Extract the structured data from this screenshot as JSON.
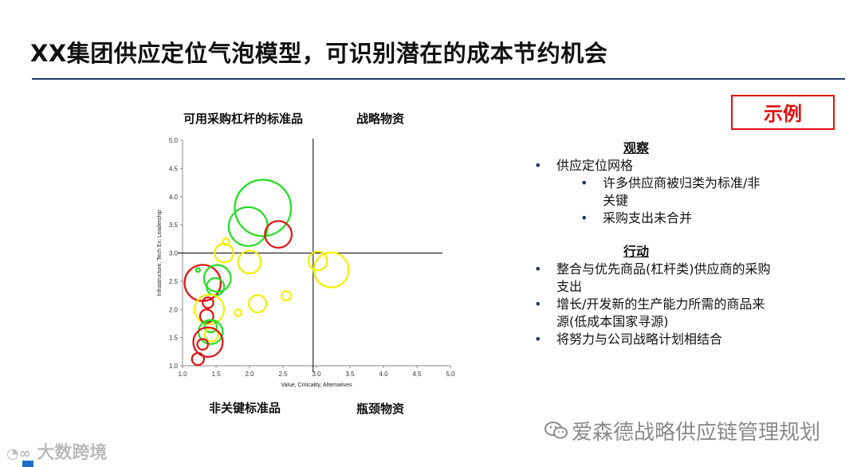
{
  "title": "XX集团供应定位气泡模型，可识别潜在的成本节约机会",
  "badge": "示例",
  "quadrants": {
    "top_left": "可用采购杠杆的标准品",
    "top_right": "战略物资",
    "bottom_left": "非关键标准品",
    "bottom_right": "瓶颈物资"
  },
  "notes": {
    "observe_title": "观察",
    "observe_items": [
      {
        "text": "供应定位网格",
        "sub": [
          "许多供应商被归类为标准/非关键",
          "采购支出未合并"
        ]
      }
    ],
    "action_title": "行动",
    "action_items": [
      "整合与优先商品(杠杆类)供应商的采购支出",
      "增长/开发新的生产能力所需的商品来源(低成本国家寻源)",
      "将努力与公司战略计划相结合"
    ]
  },
  "watermark": "爱森德战略供应链管理规划",
  "logo_text": "大数跨境",
  "colors": {
    "green": "#22dd22",
    "yellow": "#f0f000",
    "red": "#dd1111",
    "rule": "#1f3864",
    "badge": "#e01010"
  },
  "chart_data": {
    "type": "scatter",
    "xlabel": "Value, Criticality, Alternatives",
    "ylabel": "Infrastructure, Tech Ex, Leadership",
    "xlim": [
      1.0,
      5.0
    ],
    "ylim": [
      1.0,
      5.0
    ],
    "xticks": [
      "1.0",
      "1.5",
      "2.0",
      "2.5",
      "3.0",
      "3.5",
      "4.0",
      "4.5",
      "5.0"
    ],
    "yticks": [
      "1.0",
      "1.5",
      "2.0",
      "2.5",
      "3.0",
      "3.5",
      "4.0",
      "4.5",
      "5.0"
    ],
    "divider": {
      "x": 2.95,
      "y": 3.0
    },
    "bubbles": [
      {
        "x": 2.2,
        "y": 3.8,
        "r": 0.42,
        "color": "green"
      },
      {
        "x": 1.98,
        "y": 3.47,
        "r": 0.29,
        "color": "green"
      },
      {
        "x": 2.43,
        "y": 3.33,
        "r": 0.2,
        "color": "red"
      },
      {
        "x": 1.65,
        "y": 3.2,
        "r": 0.05,
        "color": "yellow"
      },
      {
        "x": 1.62,
        "y": 3.0,
        "r": 0.14,
        "color": "yellow"
      },
      {
        "x": 2.0,
        "y": 2.84,
        "r": 0.17,
        "color": "yellow"
      },
      {
        "x": 3.02,
        "y": 2.86,
        "r": 0.14,
        "color": "yellow"
      },
      {
        "x": 3.22,
        "y": 2.7,
        "r": 0.26,
        "color": "yellow"
      },
      {
        "x": 1.23,
        "y": 2.7,
        "r": 0.03,
        "color": "green"
      },
      {
        "x": 1.3,
        "y": 2.47,
        "r": 0.27,
        "color": "red"
      },
      {
        "x": 1.52,
        "y": 2.55,
        "r": 0.2,
        "color": "green"
      },
      {
        "x": 1.49,
        "y": 2.4,
        "r": 0.13,
        "color": "green"
      },
      {
        "x": 2.55,
        "y": 2.24,
        "r": 0.07,
        "color": "yellow"
      },
      {
        "x": 1.38,
        "y": 2.12,
        "r": 0.08,
        "color": "red"
      },
      {
        "x": 2.12,
        "y": 2.1,
        "r": 0.13,
        "color": "yellow"
      },
      {
        "x": 1.4,
        "y": 2.0,
        "r": 0.22,
        "color": "yellow"
      },
      {
        "x": 1.83,
        "y": 1.94,
        "r": 0.05,
        "color": "yellow"
      },
      {
        "x": 1.36,
        "y": 1.88,
        "r": 0.1,
        "color": "red"
      },
      {
        "x": 1.42,
        "y": 1.7,
        "r": 0.09,
        "color": "green"
      },
      {
        "x": 1.42,
        "y": 1.6,
        "r": 0.18,
        "color": "green"
      },
      {
        "x": 1.43,
        "y": 1.55,
        "r": 0.1,
        "color": "yellow"
      },
      {
        "x": 1.38,
        "y": 1.42,
        "r": 0.22,
        "color": "red"
      },
      {
        "x": 1.3,
        "y": 1.38,
        "r": 0.08,
        "color": "red"
      },
      {
        "x": 1.23,
        "y": 1.12,
        "r": 0.09,
        "color": "red"
      }
    ]
  }
}
